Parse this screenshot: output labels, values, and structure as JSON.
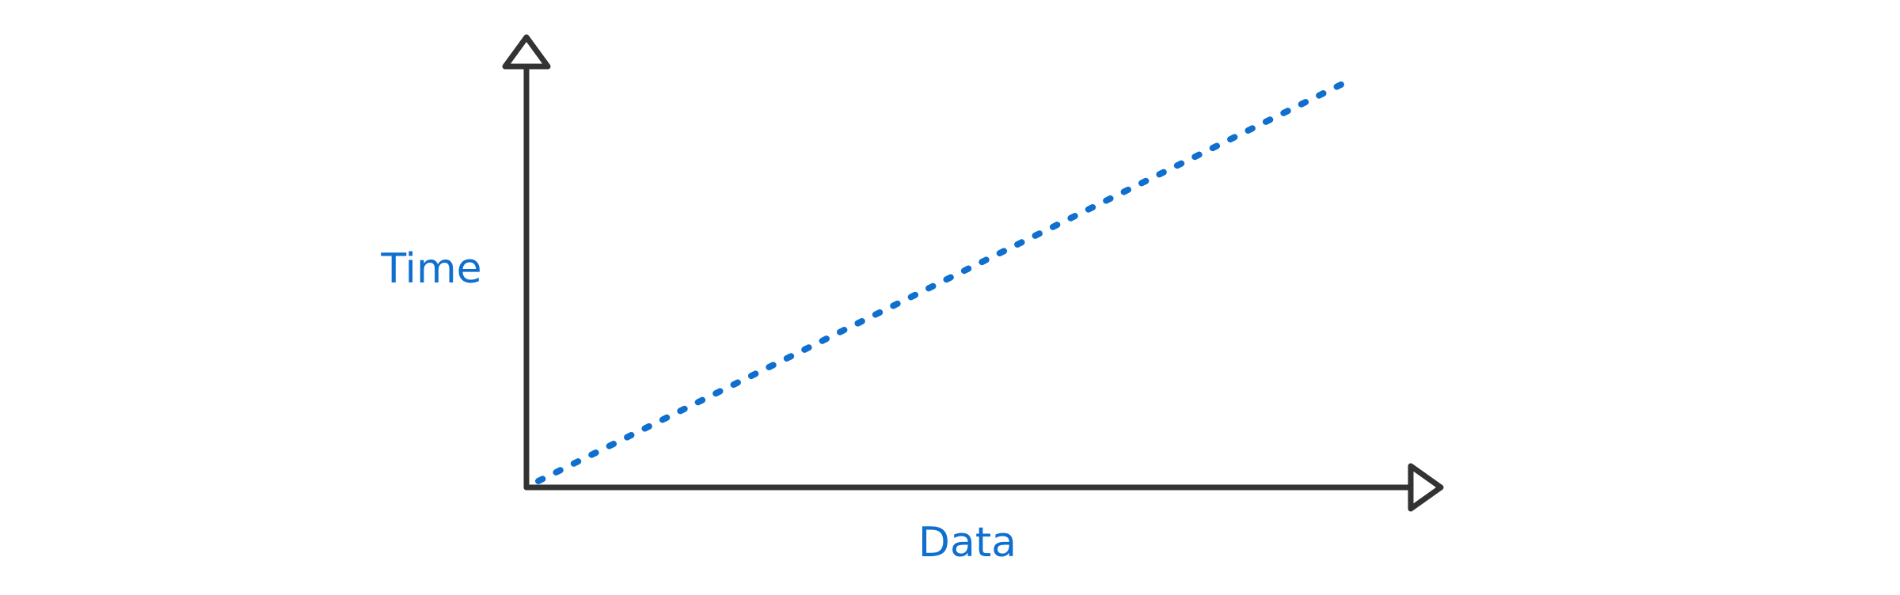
{
  "chart_data": {
    "type": "line",
    "title": "",
    "xlabel": "Data",
    "ylabel": "Time",
    "x": [
      0,
      1
    ],
    "series": [
      {
        "values": [
          0,
          1
        ],
        "line_style": "dotted"
      }
    ],
    "xlim": [
      0,
      1
    ],
    "ylim": [
      0,
      1
    ],
    "grid": false,
    "show_ticks": false,
    "axis_color": "#333333",
    "series_color": "#0f6fcf",
    "label_color": "#0f6fcf"
  }
}
